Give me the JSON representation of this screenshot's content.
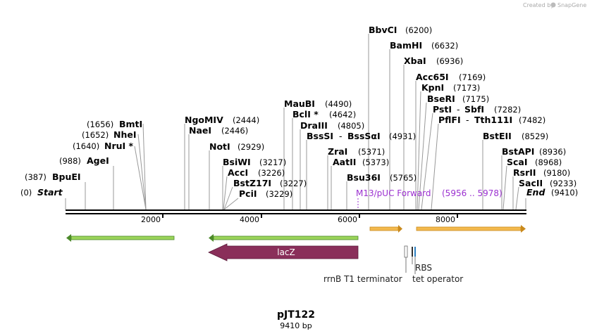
{
  "credit": {
    "prefix": "Created by",
    "brand": "SnapGene"
  },
  "plasmid": {
    "name": "pJT122",
    "length_label": "9410 bp",
    "length": 9410
  },
  "ticks": [
    "2000",
    "4000",
    "6000",
    "8000"
  ],
  "ends": {
    "start": {
      "pos": "(0)",
      "label": "Start"
    },
    "end": {
      "pos": "(9410)",
      "label": "End"
    }
  },
  "sites_left": [
    {
      "name": "BpuEI",
      "pos": "(387)"
    },
    {
      "name": "AgeI",
      "pos": "(988)"
    },
    {
      "name": "NruI *",
      "pos": "(1640)"
    },
    {
      "name": "NheI",
      "pos": "(1652)"
    },
    {
      "name": "BmtI",
      "pos": "(1656)"
    }
  ],
  "sites_right": [
    {
      "name": "NgoMIV",
      "pos": "(2444)"
    },
    {
      "name": "NaeI",
      "pos": "(2446)"
    },
    {
      "name": "NotI",
      "pos": "(2929)"
    },
    {
      "name": "BsiWI",
      "pos": "(3217)"
    },
    {
      "name": "AccI",
      "pos": "(3226)"
    },
    {
      "name": "BstZ17I",
      "pos": "(3227)"
    },
    {
      "name": "PciI",
      "pos": "(3229)"
    },
    {
      "name": "MauBI",
      "pos": "(4490)"
    },
    {
      "name": "BclI *",
      "pos": "(4642)"
    },
    {
      "name": "DraIII",
      "pos": "(4805)"
    },
    {
      "name": "BssSI",
      "name2": "BssSαI",
      "pos": "(4931)"
    },
    {
      "name": "ZraI",
      "pos": "(5371)"
    },
    {
      "name": "AatII",
      "pos": "(5373)"
    },
    {
      "name": "Bsu36I",
      "pos": "(5765)"
    },
    {
      "name": "BbvCI",
      "pos": "(6200)"
    },
    {
      "name": "BamHI",
      "pos": "(6632)"
    },
    {
      "name": "XbaI",
      "pos": "(6936)"
    },
    {
      "name": "Acc65I",
      "pos": "(7169)"
    },
    {
      "name": "KpnI",
      "pos": "(7173)"
    },
    {
      "name": "BseRI",
      "pos": "(7175)"
    },
    {
      "name": "PstI",
      "name2": "SbfI",
      "pos": "(7282)"
    },
    {
      "name": "PflFI",
      "name2": "Tth111I",
      "pos": "(7482)"
    },
    {
      "name": "BstEII",
      "pos": "(8529)"
    },
    {
      "name": "BstAPI",
      "pos": "(8936)"
    },
    {
      "name": "ScaI",
      "pos": "(8968)"
    },
    {
      "name": "RsrII",
      "pos": "(9180)"
    },
    {
      "name": "SacII",
      "pos": "(9233)"
    }
  ],
  "primer": {
    "name": "M13/pUC Forward",
    "range": "(5956 .. 5978)"
  },
  "features": {
    "lacZ": "lacZ",
    "rrnB": "rrnB T1 terminator",
    "rbs": "RBS",
    "tet": "tet operator"
  },
  "colors": {
    "green": "#9bd45a",
    "orange": "#f3b94e",
    "lacZ": "#8a2f5a",
    "primer": "#9b30d0",
    "gray": "#777777"
  }
}
